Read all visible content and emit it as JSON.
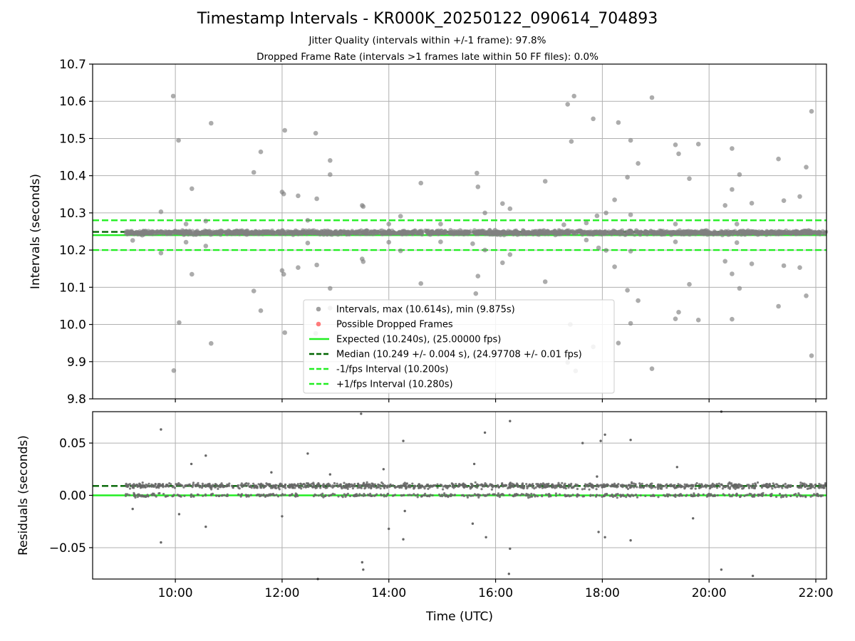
{
  "figure": {
    "title": "Timestamp Intervals - KR000K_20250122_090614_704893",
    "subtitle_1": "Jitter Quality (intervals within +/-1 frame): 97.8%",
    "subtitle_2": "Dropped Frame Rate (intervals >1 frames late within 50 FF files): 0.0%"
  },
  "colors": {
    "points": "#808080",
    "expected": "#22ee22",
    "median": "#006400",
    "bounds": "#22ee22",
    "dropped": "#ff5050",
    "grid": "#b0b0b0"
  },
  "chart_data": [
    {
      "type": "scatter",
      "ylabel": "Intervals (seconds)",
      "xlim": [
        8.45,
        22.2
      ],
      "ylim": [
        9.8,
        10.7
      ],
      "yticks": [
        "9.8",
        "9.9",
        "10.0",
        "10.1",
        "10.2",
        "10.3",
        "10.4",
        "10.5",
        "10.6",
        "10.7"
      ],
      "grid": true,
      "legend_placement": "lower-center",
      "hlines": [
        {
          "label": "Expected (10.240s), (25.00000 fps)",
          "y": 10.24,
          "style": "solid",
          "color": "#22ee22"
        },
        {
          "label": "Median (10.249 +/- 0.004 s), (24.97708 +/- 0.01 fps)",
          "y": 10.249,
          "style": "dashed",
          "color": "#006400"
        },
        {
          "label": "-1/fps Interval (10.200s)",
          "y": 10.2,
          "style": "dashed",
          "color": "#22ee22"
        },
        {
          "label": "+1/fps Interval (10.280s)",
          "y": 10.28,
          "style": "dashed",
          "color": "#22ee22"
        }
      ],
      "legend": [
        {
          "label": "Intervals, max (10.614s), min (9.875s)",
          "kind": "marker",
          "color": "#808080"
        },
        {
          "label": "Possible Dropped Frames",
          "kind": "marker",
          "color": "#ff5050"
        },
        {
          "label": "Expected (10.240s), (25.00000 fps)",
          "kind": "solid",
          "color": "#22ee22"
        },
        {
          "label": "Median (10.249 +/- 0.004 s), (24.97708 +/- 0.01 fps)",
          "kind": "dashed",
          "color": "#006400"
        },
        {
          "label": "-1/fps Interval (10.200s)",
          "kind": "dashed",
          "color": "#22ee22"
        },
        {
          "label": "+1/fps Interval (10.280s)",
          "kind": "dashed",
          "color": "#22ee22"
        }
      ],
      "band": {
        "x_start": 9.07,
        "x_end": 22.2,
        "center": 10.247,
        "spread": 0.008
      },
      "outliers": [
        [
          9.96,
          10.614
        ],
        [
          10.06,
          10.495
        ],
        [
          10.07,
          10.005
        ],
        [
          9.97,
          9.876
        ],
        [
          9.73,
          10.303
        ],
        [
          9.73,
          10.192
        ],
        [
          10.2,
          10.27
        ],
        [
          10.2,
          10.221
        ],
        [
          10.31,
          10.365
        ],
        [
          10.31,
          10.135
        ],
        [
          10.57,
          10.278
        ],
        [
          10.57,
          10.211
        ],
        [
          10.67,
          10.541
        ],
        [
          10.67,
          9.949
        ],
        [
          11.47,
          10.409
        ],
        [
          11.47,
          10.09
        ],
        [
          11.6,
          10.464
        ],
        [
          11.6,
          10.037
        ],
        [
          12.0,
          10.356
        ],
        [
          12.0,
          10.145
        ],
        [
          12.05,
          10.522
        ],
        [
          12.05,
          9.978
        ],
        [
          12.03,
          10.351
        ],
        [
          12.03,
          10.135
        ],
        [
          12.3,
          10.346
        ],
        [
          12.3,
          10.153
        ],
        [
          12.63,
          10.514
        ],
        [
          12.63,
          9.976
        ],
        [
          12.65,
          10.338
        ],
        [
          12.65,
          10.16
        ],
        [
          12.48,
          10.28
        ],
        [
          12.48,
          10.219
        ],
        [
          12.9,
          10.441
        ],
        [
          12.9,
          10.097
        ],
        [
          12.9,
          10.403
        ],
        [
          12.9,
          10.044
        ],
        [
          13.5,
          10.32
        ],
        [
          13.5,
          10.176
        ],
        [
          13.52,
          10.317
        ],
        [
          13.52,
          10.169
        ],
        [
          14.0,
          10.27
        ],
        [
          14.0,
          10.221
        ],
        [
          14.22,
          10.291
        ],
        [
          14.22,
          10.198
        ],
        [
          14.6,
          10.38
        ],
        [
          14.6,
          10.11
        ],
        [
          14.97,
          10.27
        ],
        [
          14.97,
          10.222
        ],
        [
          15.57,
          10.217
        ],
        [
          15.65,
          10.407
        ],
        [
          15.67,
          10.37
        ],
        [
          15.67,
          10.13
        ],
        [
          15.63,
          10.083
        ],
        [
          15.8,
          10.3
        ],
        [
          15.8,
          10.2
        ],
        [
          16.13,
          10.325
        ],
        [
          16.13,
          10.166
        ],
        [
          16.27,
          10.311
        ],
        [
          16.27,
          10.188
        ],
        [
          16.93,
          10.385
        ],
        [
          16.93,
          10.115
        ],
        [
          17.28,
          10.268
        ],
        [
          17.35,
          10.592
        ],
        [
          17.42,
          10.492
        ],
        [
          17.47,
          10.614
        ],
        [
          17.4,
          10.0
        ],
        [
          17.35,
          9.898
        ],
        [
          17.5,
          9.875
        ],
        [
          17.7,
          10.273
        ],
        [
          17.7,
          10.227
        ],
        [
          17.83,
          10.553
        ],
        [
          17.83,
          9.94
        ],
        [
          17.9,
          10.292
        ],
        [
          17.93,
          10.206
        ],
        [
          18.07,
          10.3
        ],
        [
          18.07,
          10.199
        ],
        [
          18.23,
          10.335
        ],
        [
          18.23,
          10.155
        ],
        [
          18.3,
          10.543
        ],
        [
          18.3,
          9.95
        ],
        [
          18.47,
          10.396
        ],
        [
          18.47,
          10.092
        ],
        [
          18.53,
          10.495
        ],
        [
          18.53,
          10.003
        ],
        [
          18.53,
          10.295
        ],
        [
          18.53,
          10.197
        ],
        [
          18.67,
          10.433
        ],
        [
          18.67,
          10.064
        ],
        [
          18.93,
          10.61
        ],
        [
          18.93,
          9.881
        ],
        [
          19.37,
          10.483
        ],
        [
          19.37,
          10.015
        ],
        [
          19.43,
          10.459
        ],
        [
          19.43,
          10.033
        ],
        [
          19.37,
          10.27
        ],
        [
          19.37,
          10.222
        ],
        [
          19.63,
          10.392
        ],
        [
          19.63,
          10.108
        ],
        [
          19.8,
          10.485
        ],
        [
          19.8,
          10.012
        ],
        [
          20.3,
          10.32
        ],
        [
          20.3,
          10.17
        ],
        [
          20.43,
          10.473
        ],
        [
          20.43,
          10.014
        ],
        [
          20.43,
          10.363
        ],
        [
          20.43,
          10.136
        ],
        [
          20.57,
          10.403
        ],
        [
          20.57,
          10.097
        ],
        [
          20.8,
          10.326
        ],
        [
          20.8,
          10.163
        ],
        [
          20.52,
          10.27
        ],
        [
          20.52,
          10.22
        ],
        [
          21.3,
          10.445
        ],
        [
          21.3,
          10.049
        ],
        [
          21.4,
          10.333
        ],
        [
          21.4,
          10.158
        ],
        [
          21.7,
          10.344
        ],
        [
          21.7,
          10.153
        ],
        [
          21.82,
          10.423
        ],
        [
          21.82,
          10.077
        ],
        [
          21.92,
          10.573
        ],
        [
          21.92,
          9.916
        ],
        [
          9.38,
          10.24
        ],
        [
          9.2,
          10.226
        ]
      ]
    },
    {
      "type": "scatter",
      "xlabel": "Time (UTC)",
      "ylabel": "Residuals (seconds)",
      "xlim": [
        8.45,
        22.2
      ],
      "ylim": [
        -0.08,
        0.08
      ],
      "yticks": [
        {
          "label": "−0.05",
          "value": -0.05
        },
        {
          "label": "0.00",
          "value": 0.0
        },
        {
          "label": "0.05",
          "value": 0.05
        }
      ],
      "xticks": [
        {
          "label": "10:00",
          "value": 10
        },
        {
          "label": "12:00",
          "value": 12
        },
        {
          "label": "14:00",
          "value": 14
        },
        {
          "label": "16:00",
          "value": 16
        },
        {
          "label": "18:00",
          "value": 18
        },
        {
          "label": "20:00",
          "value": 20
        },
        {
          "label": "22:00",
          "value": 22
        }
      ],
      "grid": true,
      "hlines": [
        {
          "y": 0.0,
          "style": "solid",
          "color": "#22ee22"
        },
        {
          "y": 0.009,
          "style": "dashed",
          "color": "#006400"
        }
      ],
      "band": {
        "x_start": 9.07,
        "x_end": 22.2,
        "upper": 0.009,
        "lower": 0.0,
        "spread": 0.004
      },
      "outliers": [
        [
          9.73,
          0.063
        ],
        [
          9.73,
          -0.045
        ],
        [
          10.3,
          0.03
        ],
        [
          10.57,
          0.038
        ],
        [
          10.57,
          -0.03
        ],
        [
          12.48,
          0.04
        ],
        [
          13.48,
          0.078
        ],
        [
          13.5,
          -0.064
        ],
        [
          13.52,
          -0.071
        ],
        [
          14.27,
          0.052
        ],
        [
          14.27,
          -0.042
        ],
        [
          15.8,
          0.06
        ],
        [
          15.82,
          -0.04
        ],
        [
          16.27,
          0.071
        ],
        [
          16.25,
          -0.075
        ],
        [
          16.27,
          -0.051
        ],
        [
          17.63,
          0.05
        ],
        [
          17.97,
          0.052
        ],
        [
          18.05,
          0.058
        ],
        [
          17.93,
          -0.035
        ],
        [
          18.05,
          -0.04
        ],
        [
          18.53,
          0.053
        ],
        [
          18.53,
          -0.043
        ],
        [
          20.23,
          0.08
        ],
        [
          20.23,
          -0.071
        ],
        [
          20.82,
          -0.077
        ],
        [
          12.67,
          -0.08
        ],
        [
          15.6,
          0.03
        ],
        [
          15.57,
          -0.027
        ],
        [
          13.9,
          0.025
        ],
        [
          14.0,
          -0.032
        ],
        [
          19.4,
          0.027
        ],
        [
          11.8,
          0.022
        ],
        [
          12.0,
          -0.02
        ],
        [
          10.07,
          -0.018
        ],
        [
          19.7,
          -0.022
        ],
        [
          14.3,
          -0.015
        ],
        [
          9.2,
          -0.013
        ],
        [
          17.9,
          0.018
        ],
        [
          12.9,
          0.02
        ]
      ]
    }
  ]
}
